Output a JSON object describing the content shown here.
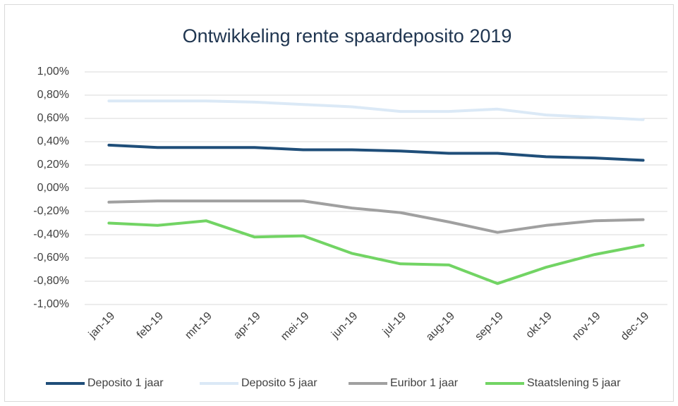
{
  "chart_data": {
    "type": "line",
    "title": "Ontwikkeling rente spaardeposito 2019",
    "categories": [
      "jan-19",
      "feb-19",
      "mrt-19",
      "apr-19",
      "mei-19",
      "jun-19",
      "jul-19",
      "aug-19",
      "sep-19",
      "okt-19",
      "nov-19",
      "dec-19"
    ],
    "series": [
      {
        "name": "Deposito 1 jaar",
        "color": "#1f4e79",
        "values": [
          0.37,
          0.35,
          0.35,
          0.35,
          0.33,
          0.33,
          0.32,
          0.3,
          0.3,
          0.27,
          0.26,
          0.24
        ]
      },
      {
        "name": "Deposito 5 jaar",
        "color": "#dbe9f6",
        "values": [
          0.75,
          0.75,
          0.75,
          0.74,
          0.72,
          0.7,
          0.66,
          0.66,
          0.68,
          0.63,
          0.61,
          0.59
        ]
      },
      {
        "name": "Euribor 1 jaar",
        "color": "#a0a0a0",
        "values": [
          -0.12,
          -0.11,
          -0.11,
          -0.11,
          -0.11,
          -0.17,
          -0.21,
          -0.29,
          -0.38,
          -0.32,
          -0.28,
          -0.27
        ]
      },
      {
        "name": "Staatslening 5 jaar",
        "color": "#72d464",
        "values": [
          -0.3,
          -0.32,
          -0.28,
          -0.42,
          -0.41,
          -0.56,
          -0.65,
          -0.66,
          -0.82,
          -0.68,
          -0.57,
          -0.49
        ]
      }
    ],
    "ylim": [
      -1,
      1
    ],
    "yticks": [
      {
        "value": -1,
        "label": "-1,00%"
      },
      {
        "value": -0.8,
        "label": "-0,80%"
      },
      {
        "value": -0.6,
        "label": "-0,60%"
      },
      {
        "value": -0.4,
        "label": "-0,40%"
      },
      {
        "value": -0.2,
        "label": "-0,20%"
      },
      {
        "value": 0,
        "label": "0,00%"
      },
      {
        "value": 0.2,
        "label": "0,20%"
      },
      {
        "value": 0.4,
        "label": "0,40%"
      },
      {
        "value": 0.6,
        "label": "0,60%"
      },
      {
        "value": 0.8,
        "label": "0,80%"
      },
      {
        "value": 1,
        "label": "1,00%"
      }
    ],
    "grid": true,
    "legend": "bottom"
  }
}
